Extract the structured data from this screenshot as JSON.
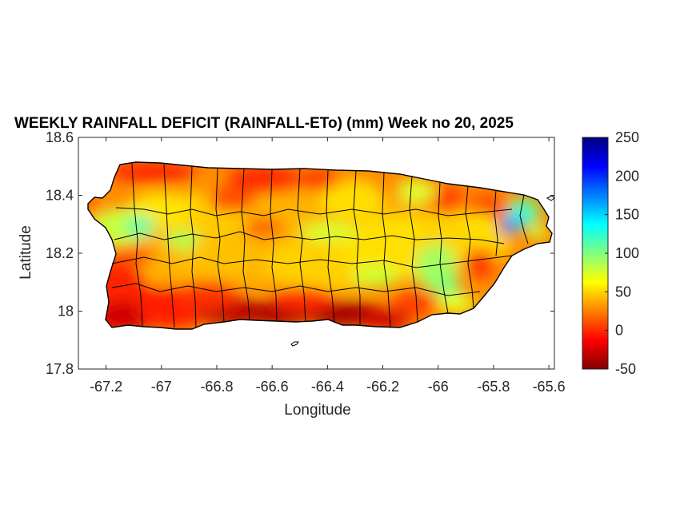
{
  "title": "WEEKLY RAINFALL DEFICIT (RAINFALL-ETo) (mm) Week no 20, 2025",
  "xlabel": "Longitude",
  "ylabel": "Latitude",
  "axes": {
    "xlim": [
      -67.3,
      -65.58
    ],
    "ylim": [
      17.8,
      18.6
    ],
    "xticks": [
      -67.2,
      -67.0,
      -66.8,
      -66.6,
      -66.4,
      -66.2,
      -66.0,
      -65.8,
      -65.6
    ],
    "xtick_labels": [
      "-67.2",
      "-67",
      "-66.8",
      "-66.6",
      "-66.4",
      "-66.2",
      "-66",
      "-65.8",
      "-65.6"
    ],
    "yticks": [
      17.8,
      18.0,
      18.2,
      18.4,
      18.6
    ],
    "ytick_labels": [
      "17.8",
      "18",
      "18.2",
      "18.4",
      "18.6"
    ]
  },
  "colorbar": {
    "min": -50,
    "max": 250,
    "ticks": [
      -50,
      0,
      50,
      100,
      150,
      200,
      250
    ],
    "tick_labels": [
      "-50",
      "0",
      "50",
      "100",
      "150",
      "200",
      "250"
    ],
    "colormap": [
      "#800000",
      "#ff0000",
      "#ff8000",
      "#ffff00",
      "#80ff80",
      "#00ffff",
      "#0080ff",
      "#0000ff",
      "#000080"
    ]
  }
}
